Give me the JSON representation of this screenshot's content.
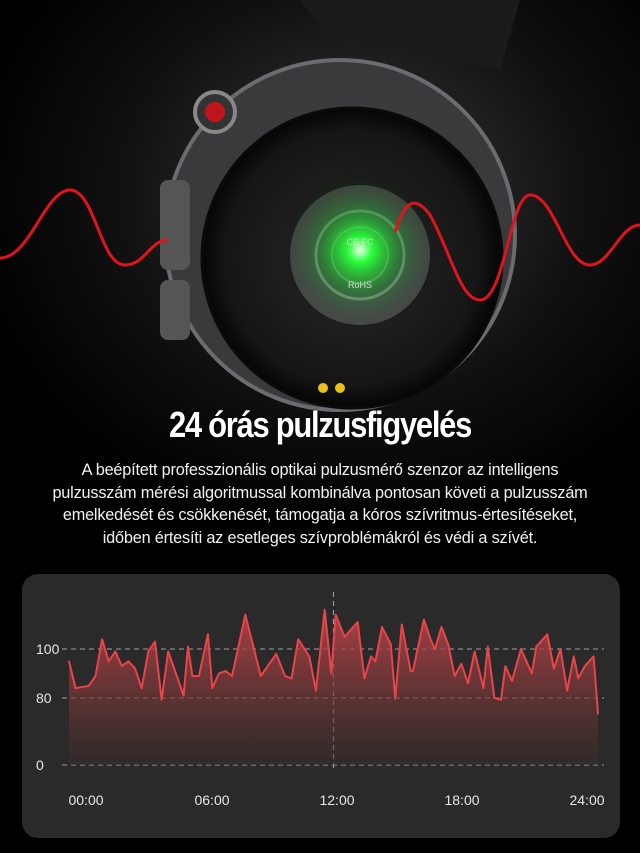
{
  "headline": "24 órás pulzusfigyelés",
  "description_lines": [
    "A beépített professzionális optikai pulzusmérő szenzor az intelligens",
    "pulzusszám mérési algoritmussal kombinálva pontosan követi a pulzusszám",
    "emelkedését és csökkenését, támogatja a kóros szívritmus-értesítéseket,",
    "időben értesíti az esetleges szívproblémákról és védi a szívét."
  ],
  "sensor_marks": [
    "CE",
    "FC",
    "RoHS"
  ],
  "colors": {
    "line": "#e8444a",
    "panel": "#2a2a2a",
    "wave": "#e0141e",
    "sensor_glow": "#2bff3a",
    "button_dots": "#e8c21a"
  },
  "chart_data": {
    "type": "area",
    "title": "",
    "xlabel": "",
    "ylabel": "",
    "x_tick_labels": [
      "00:00",
      "06:00",
      "12:00",
      "18:00",
      "24:00"
    ],
    "x_ticks": [
      0,
      6,
      12,
      18,
      24
    ],
    "y_tick_labels": [
      "0",
      "80",
      "100"
    ],
    "y_ticks": [
      0,
      80,
      100
    ],
    "xlim": [
      0,
      24
    ],
    "ylim": [
      0,
      116
    ],
    "grid": "dashed horizontal at y ticks, dashed vertical at 12:00",
    "x": [
      0,
      0.3,
      0.9,
      1.2,
      1.5,
      1.8,
      2.1,
      2.4,
      2.7,
      3.0,
      3.3,
      3.6,
      3.9,
      4.2,
      4.5,
      5.2,
      5.4,
      5.6,
      5.9,
      6.3,
      6.5,
      6.8,
      7.1,
      7.4,
      8.0,
      8.7,
      9.4,
      9.8,
      10.1,
      10.4,
      10.9,
      11.2,
      11.6,
      11.9,
      12.1,
      12.5,
      13.1,
      13.4,
      13.7,
      13.9,
      14.2,
      14.6,
      14.8,
      15.1,
      15.5,
      15.6,
      16.1,
      16.4,
      16.6,
      16.9,
      17.2,
      17.5,
      17.8,
      18.1,
      18.4,
      18.8,
      19.0,
      19.3,
      19.6,
      19.8,
      20.1,
      20.5,
      21.0,
      21.2,
      21.7,
      22.0,
      22.3,
      22.6,
      22.9,
      23.1,
      23.4,
      23.8,
      24.0
    ],
    "values": [
      95,
      84,
      85,
      89,
      104,
      95,
      99,
      93,
      95,
      92,
      84,
      99,
      103,
      78,
      99,
      81,
      101,
      89,
      89,
      106,
      84,
      90,
      91,
      89,
      114,
      89,
      98,
      89,
      88,
      104,
      97,
      83,
      116,
      90,
      114,
      105,
      111,
      88,
      97,
      95,
      109,
      102,
      79,
      110,
      91,
      91,
      112,
      104,
      100,
      109,
      102,
      89,
      94,
      86,
      99,
      84,
      101,
      80,
      78,
      93,
      87,
      100,
      90,
      101,
      106,
      92,
      100,
      83,
      97,
      88,
      93,
      97,
      61
    ]
  }
}
